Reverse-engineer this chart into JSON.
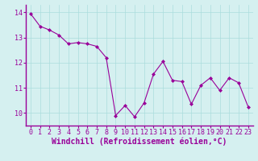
{
  "x": [
    0,
    1,
    2,
    3,
    4,
    5,
    6,
    7,
    8,
    9,
    10,
    11,
    12,
    13,
    14,
    15,
    16,
    17,
    18,
    19,
    20,
    21,
    22,
    23
  ],
  "y": [
    13.95,
    13.45,
    13.3,
    13.1,
    12.75,
    12.8,
    12.75,
    12.65,
    12.2,
    9.9,
    10.3,
    9.85,
    10.4,
    11.55,
    12.05,
    11.3,
    11.25,
    10.35,
    11.1,
    11.4,
    10.9,
    11.4,
    11.2,
    10.25
  ],
  "line_color": "#990099",
  "marker": "D",
  "marker_size": 2,
  "bg_color": "#d5f0f0",
  "grid_color": "#aadddd",
  "xlabel": "Windchill (Refroidissement éolien,°C)",
  "xlabel_fontsize": 7,
  "tick_fontsize": 6,
  "label_color": "#990099",
  "yticks": [
    10,
    11,
    12,
    13,
    14
  ],
  "ylim": [
    9.5,
    14.3
  ],
  "xlim": [
    -0.5,
    23.5
  ]
}
